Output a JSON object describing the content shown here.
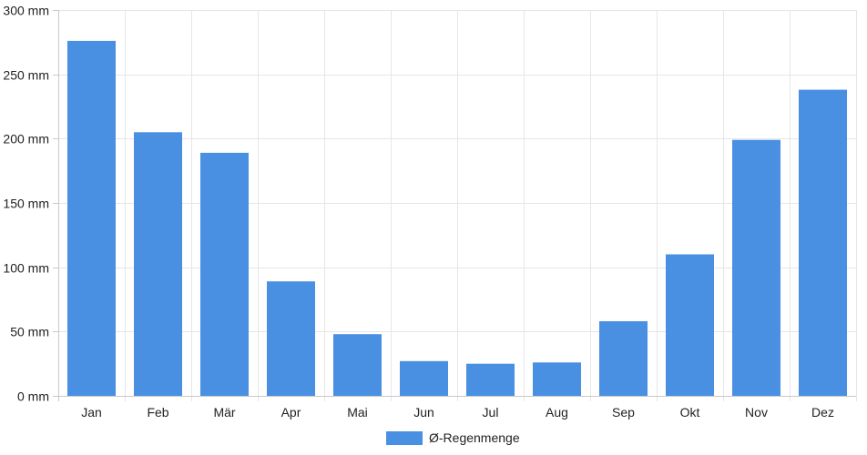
{
  "chart_data": {
    "type": "bar",
    "categories": [
      "Jan",
      "Feb",
      "Mär",
      "Apr",
      "Mai",
      "Jun",
      "Jul",
      "Aug",
      "Sep",
      "Okt",
      "Nov",
      "Dez"
    ],
    "series": [
      {
        "name": "Ø-Regenmenge",
        "values": [
          276,
          205,
          189,
          89,
          48,
          27,
          25,
          26,
          58,
          110,
          199,
          238
        ],
        "color": "#4a90e2"
      }
    ],
    "ylim": [
      0,
      300
    ],
    "yticks": [
      0,
      50,
      100,
      150,
      200,
      250,
      300
    ],
    "y_unit": "mm",
    "grid": true,
    "legend": "bottom-center",
    "title": "",
    "xlabel": "",
    "ylabel": ""
  },
  "colors": {
    "bar": "#4a90e2",
    "grid": "#e6e6e6",
    "axis": "#c8c8c8",
    "text": "#222222"
  }
}
